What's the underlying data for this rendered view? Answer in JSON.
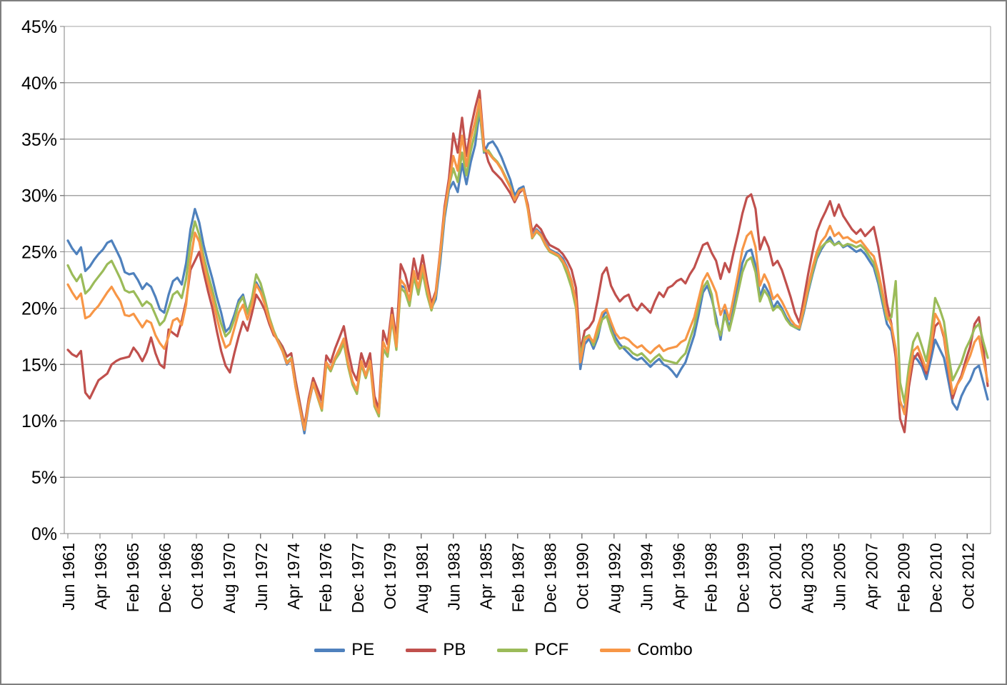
{
  "chart_data": {
    "type": "line",
    "title": "",
    "xlabel": "",
    "ylabel": "",
    "grid": true,
    "legend_position": "bottom",
    "ylim": [
      0,
      45
    ],
    "y_ticks": [
      "0%",
      "5%",
      "10%",
      "15%",
      "20%",
      "25%",
      "30%",
      "35%",
      "40%",
      "45%"
    ],
    "x_tick_labels": [
      "Jun 1961",
      "Apr 1963",
      "Feb 1965",
      "Dec 1966",
      "Oct 1968",
      "Aug 1970",
      "Jun 1972",
      "Apr 1974",
      "Feb 1976",
      "Dec 1977",
      "Oct 1979",
      "Aug 1981",
      "Jun 1983",
      "Apr 1985",
      "Feb 1987",
      "Dec 1988",
      "Oct 1990",
      "Aug 1992",
      "Jun 1994",
      "Apr 1996",
      "Feb 1998",
      "Dec 1999",
      "Oct 2001",
      "Aug 2003",
      "Jun 2005",
      "Apr 2007",
      "Feb 2009",
      "Dec 2010",
      "Oct 2012"
    ],
    "x_tick_month_interval": 22,
    "x_months": {
      "start": 0,
      "step": 3,
      "count": 211,
      "origin_label": "Jun 1961"
    },
    "axis_color": "#808080",
    "gridline_color": "#a6a6a6",
    "series": [
      {
        "name": "PE",
        "color": "#4F81BD",
        "values": [
          26.0,
          25.3,
          24.8,
          25.4,
          23.3,
          23.7,
          24.3,
          24.8,
          25.2,
          25.8,
          26.0,
          25.2,
          24.4,
          23.2,
          23.0,
          23.1,
          22.5,
          21.7,
          22.2,
          21.9,
          21.0,
          19.9,
          19.6,
          21.2,
          22.4,
          22.7,
          22.1,
          24.0,
          27.0,
          28.8,
          27.6,
          25.6,
          24.0,
          22.6,
          21.0,
          19.6,
          17.9,
          18.3,
          19.4,
          20.7,
          21.2,
          19.6,
          20.8,
          22.3,
          21.6,
          20.4,
          18.9,
          17.8,
          17.0,
          16.2,
          15.0,
          15.5,
          13.0,
          11.0,
          8.9,
          11.5,
          13.3,
          12.2,
          11.2,
          15.2,
          14.6,
          15.6,
          16.2,
          17.2,
          15.0,
          13.4,
          12.6,
          15.2,
          14.0,
          15.3,
          11.5,
          10.6,
          16.3,
          15.8,
          19.2,
          16.5,
          22.0,
          21.8,
          20.6,
          23.2,
          21.6,
          23.4,
          21.6,
          20.0,
          20.8,
          24.0,
          28.0,
          30.5,
          31.2,
          30.3,
          32.8,
          31.0,
          33.0,
          34.5,
          37.5,
          33.8,
          34.6,
          34.8,
          34.2,
          33.4,
          32.4,
          31.4,
          30.0,
          30.6,
          30.8,
          29.0,
          26.4,
          27.0,
          26.6,
          25.8,
          25.2,
          25.0,
          24.8,
          24.4,
          23.6,
          22.4,
          20.6,
          14.6,
          16.8,
          17.3,
          16.4,
          17.4,
          19.2,
          19.8,
          18.4,
          17.4,
          16.8,
          16.4,
          16.0,
          15.6,
          15.4,
          15.6,
          15.2,
          14.8,
          15.2,
          15.5,
          15.0,
          14.8,
          14.4,
          13.9,
          14.6,
          15.2,
          16.4,
          17.6,
          19.4,
          21.4,
          22.0,
          20.8,
          19.2,
          17.2,
          19.8,
          18.2,
          20.0,
          22.0,
          24.0,
          25.0,
          25.2,
          23.8,
          21.0,
          22.1,
          21.4,
          20.0,
          20.6,
          20.0,
          19.2,
          18.6,
          18.3,
          18.1,
          19.6,
          21.4,
          23.0,
          24.4,
          25.2,
          25.8,
          26.3,
          25.6,
          25.9,
          25.4,
          25.6,
          25.3,
          25.0,
          25.2,
          24.8,
          24.2,
          23.6,
          22.2,
          20.4,
          18.6,
          18.0,
          15.8,
          11.6,
          11.0,
          14.0,
          15.8,
          15.4,
          14.8,
          13.7,
          15.4,
          17.2,
          16.4,
          15.6,
          13.6,
          11.6,
          11.0,
          12.2,
          13.0,
          13.6,
          14.6,
          14.9,
          13.4,
          11.9
        ]
      },
      {
        "name": "PB",
        "color": "#C0504D",
        "values": [
          16.3,
          15.9,
          15.7,
          16.2,
          12.5,
          12.0,
          12.8,
          13.6,
          13.9,
          14.2,
          15.0,
          15.3,
          15.5,
          15.6,
          15.7,
          16.5,
          16.0,
          15.3,
          16.1,
          17.4,
          16.0,
          15.0,
          14.7,
          18.1,
          17.8,
          17.5,
          18.9,
          20.6,
          23.4,
          24.2,
          25.0,
          23.2,
          21.5,
          20.0,
          18.0,
          16.2,
          14.9,
          14.3,
          16.0,
          17.5,
          18.8,
          18.0,
          19.5,
          21.2,
          20.6,
          19.8,
          18.6,
          17.6,
          17.2,
          16.6,
          15.7,
          16.0,
          13.6,
          11.5,
          9.5,
          12.0,
          13.8,
          12.8,
          11.8,
          15.8,
          15.2,
          16.4,
          17.4,
          18.4,
          16.2,
          14.4,
          13.6,
          16.0,
          14.8,
          16.0,
          12.2,
          11.0,
          18.0,
          16.8,
          20.0,
          17.3,
          23.9,
          23.0,
          21.5,
          24.4,
          22.6,
          24.7,
          22.4,
          20.4,
          21.5,
          25.0,
          29.0,
          31.5,
          35.5,
          33.8,
          36.9,
          33.5,
          36.0,
          37.8,
          39.3,
          34.4,
          33.0,
          32.2,
          31.8,
          31.4,
          30.8,
          30.2,
          29.4,
          30.2,
          30.6,
          29.2,
          26.8,
          27.4,
          27.0,
          26.2,
          25.6,
          25.4,
          25.2,
          24.8,
          24.2,
          23.4,
          21.8,
          16.2,
          18.0,
          18.3,
          18.9,
          20.8,
          23.0,
          23.6,
          22.0,
          21.2,
          20.6,
          21.0,
          21.2,
          20.2,
          19.8,
          20.4,
          20.0,
          19.6,
          20.6,
          21.4,
          21.0,
          21.8,
          22.0,
          22.4,
          22.6,
          22.2,
          23.0,
          23.6,
          24.6,
          25.6,
          25.8,
          24.9,
          24.2,
          22.6,
          24.0,
          23.2,
          25.0,
          26.6,
          28.4,
          29.8,
          30.1,
          28.8,
          25.2,
          26.3,
          25.4,
          23.8,
          24.2,
          23.4,
          22.2,
          21.0,
          19.6,
          18.7,
          20.8,
          23.0,
          25.0,
          26.8,
          27.8,
          28.6,
          29.5,
          28.2,
          29.2,
          28.2,
          27.6,
          27.0,
          26.6,
          27.0,
          26.4,
          26.8,
          27.2,
          25.4,
          23.0,
          20.4,
          18.6,
          15.6,
          10.2,
          9.0,
          13.0,
          15.4,
          16.0,
          15.2,
          14.2,
          16.2,
          18.4,
          18.8,
          17.4,
          14.6,
          12.0,
          13.2,
          14.0,
          15.4,
          16.6,
          18.6,
          19.2,
          16.4,
          13.1
        ]
      },
      {
        "name": "PCF",
        "color": "#9BBB59",
        "values": [
          23.8,
          23.0,
          22.4,
          23.0,
          21.3,
          21.7,
          22.3,
          22.8,
          23.3,
          23.9,
          24.2,
          23.4,
          22.6,
          21.6,
          21.4,
          21.5,
          20.9,
          20.2,
          20.6,
          20.3,
          19.4,
          18.5,
          18.9,
          20.0,
          21.2,
          21.5,
          20.9,
          22.6,
          25.8,
          27.7,
          26.5,
          24.6,
          23.0,
          21.6,
          20.0,
          18.6,
          17.5,
          17.9,
          19.0,
          20.4,
          21.0,
          19.5,
          20.8,
          23.0,
          22.2,
          20.8,
          19.2,
          18.0,
          17.1,
          16.3,
          15.2,
          15.6,
          13.1,
          11.1,
          9.2,
          11.6,
          13.4,
          12.1,
          10.9,
          15.0,
          14.4,
          15.4,
          16.0,
          16.9,
          14.8,
          13.2,
          12.4,
          15.0,
          13.8,
          15.1,
          11.3,
          10.4,
          16.4,
          15.7,
          19.0,
          16.3,
          21.8,
          21.4,
          20.2,
          22.8,
          21.2,
          23.2,
          21.2,
          19.8,
          21.2,
          24.6,
          28.4,
          30.8,
          32.4,
          31.2,
          33.8,
          31.8,
          34.0,
          35.6,
          37.8,
          33.9,
          34.0,
          33.4,
          33.0,
          32.4,
          31.6,
          30.8,
          29.6,
          30.4,
          30.6,
          28.8,
          26.2,
          26.8,
          26.4,
          25.6,
          25.0,
          24.8,
          24.6,
          24.0,
          23.0,
          21.8,
          20.0,
          15.8,
          17.4,
          17.6,
          16.7,
          17.8,
          19.0,
          19.3,
          18.0,
          17.0,
          16.4,
          16.6,
          16.4,
          16.0,
          15.8,
          16.0,
          15.6,
          15.2,
          15.6,
          15.9,
          15.4,
          15.3,
          15.2,
          15.1,
          15.6,
          16.0,
          17.2,
          18.4,
          20.2,
          21.8,
          22.4,
          21.2,
          18.6,
          17.6,
          19.4,
          18.0,
          19.6,
          21.4,
          23.2,
          24.2,
          24.5,
          23.2,
          20.6,
          21.6,
          21.0,
          19.8,
          20.2,
          19.8,
          19.0,
          18.5,
          18.3,
          18.2,
          19.8,
          21.6,
          23.2,
          24.6,
          25.4,
          25.8,
          26.0,
          25.6,
          25.8,
          25.5,
          25.7,
          25.6,
          25.4,
          25.6,
          25.2,
          24.6,
          24.0,
          22.6,
          20.8,
          19.0,
          19.2,
          22.4,
          13.4,
          11.6,
          14.8,
          17.0,
          17.8,
          16.6,
          15.3,
          17.6,
          20.9,
          20.0,
          18.8,
          16.0,
          13.6,
          14.4,
          15.2,
          16.4,
          17.2,
          18.2,
          18.6,
          17.0,
          15.6
        ]
      },
      {
        "name": "Combo",
        "color": "#F79646",
        "values": [
          22.1,
          21.4,
          20.8,
          21.3,
          19.1,
          19.3,
          19.8,
          20.2,
          20.8,
          21.4,
          21.9,
          21.2,
          20.6,
          19.4,
          19.3,
          19.5,
          18.9,
          18.3,
          18.9,
          18.7,
          17.6,
          16.9,
          16.4,
          17.5,
          18.9,
          19.1,
          18.5,
          20.3,
          24.2,
          26.7,
          25.9,
          24.0,
          22.3,
          20.9,
          19.2,
          17.6,
          16.5,
          16.8,
          18.2,
          19.6,
          20.3,
          19.0,
          20.2,
          22.1,
          21.4,
          20.3,
          18.9,
          17.8,
          17.0,
          16.2,
          15.1,
          15.5,
          13.0,
          11.0,
          9.2,
          11.6,
          13.4,
          12.2,
          11.1,
          15.2,
          14.6,
          15.6,
          16.4,
          17.3,
          15.1,
          13.5,
          12.7,
          15.3,
          14.0,
          15.3,
          11.5,
          10.7,
          17.0,
          16.1,
          19.4,
          16.6,
          22.5,
          22.0,
          20.7,
          23.3,
          21.8,
          23.8,
          21.8,
          20.0,
          21.3,
          24.8,
          28.6,
          31.0,
          33.5,
          32.2,
          35.3,
          32.6,
          35.0,
          36.6,
          38.5,
          34.1,
          33.8,
          33.3,
          32.9,
          32.3,
          31.5,
          30.7,
          29.6,
          30.4,
          30.6,
          28.9,
          26.3,
          26.9,
          26.5,
          25.7,
          25.1,
          24.9,
          24.7,
          24.2,
          23.5,
          22.4,
          20.6,
          15.2,
          17.2,
          17.5,
          17.0,
          18.4,
          19.6,
          19.9,
          18.8,
          17.8,
          17.3,
          17.4,
          17.2,
          16.8,
          16.5,
          16.7,
          16.3,
          16.0,
          16.4,
          16.7,
          16.2,
          16.4,
          16.5,
          16.6,
          17.0,
          17.2,
          18.2,
          19.2,
          20.8,
          22.4,
          23.1,
          22.3,
          21.4,
          19.4,
          20.3,
          19.0,
          21.0,
          23.0,
          25.2,
          26.4,
          26.8,
          25.4,
          22.0,
          23.0,
          22.2,
          20.8,
          21.2,
          20.6,
          19.8,
          19.0,
          18.5,
          18.3,
          20.0,
          21.9,
          23.6,
          25.0,
          25.9,
          26.4,
          27.3,
          26.4,
          26.7,
          26.2,
          26.3,
          26.0,
          25.8,
          26.0,
          25.5,
          25.0,
          24.6,
          23.2,
          21.4,
          19.4,
          18.5,
          16.4,
          11.8,
          10.6,
          13.8,
          16.2,
          16.6,
          15.6,
          14.5,
          16.4,
          19.5,
          18.8,
          17.6,
          14.8,
          12.4,
          13.2,
          13.8,
          14.9,
          15.8,
          17.0,
          17.5,
          15.4,
          13.5
        ]
      }
    ]
  }
}
